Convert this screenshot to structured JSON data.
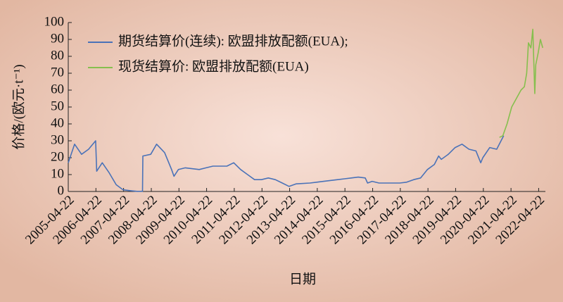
{
  "chart_data": {
    "type": "line",
    "xlabel": "日期",
    "ylabel": "价格/(欧元·t⁻¹)",
    "xlim": [
      "2005-04-22",
      "2022-07-20"
    ],
    "xticks": [
      "2005-04-22",
      "2006-04-22",
      "2007-04-22",
      "2008-04-22",
      "2009-04-22",
      "2010-04-22",
      "2011-04-22",
      "2012-04-22",
      "2013-04-22",
      "2014-04-22",
      "2015-04-22",
      "2016-04-22",
      "2017-04-22",
      "2018-04-22",
      "2019-04-22",
      "2020-04-22",
      "2021-04-22",
      "2022-04-22"
    ],
    "ylim": [
      0,
      100
    ],
    "yticks": [
      0,
      10,
      20,
      30,
      40,
      50,
      60,
      70,
      80,
      90,
      100
    ],
    "legend": "top-left",
    "series": [
      {
        "name": "期货结算价(连续): 欧盟排放配额(EUA);",
        "color": "#4a72b8",
        "x": [
          "2005-04-22",
          "2005-07-15",
          "2005-10-15",
          "2006-01-15",
          "2006-04-18",
          "2006-05-02",
          "2006-07-15",
          "2006-10-15",
          "2007-01-15",
          "2007-04-15",
          "2007-07-15",
          "2007-10-15",
          "2007-12-28",
          "2008-01-02",
          "2008-04-15",
          "2008-07-01",
          "2008-10-15",
          "2009-01-15",
          "2009-02-15",
          "2009-04-15",
          "2009-07-15",
          "2010-01-15",
          "2010-04-15",
          "2010-07-15",
          "2011-01-15",
          "2011-04-15",
          "2011-07-15",
          "2011-10-15",
          "2012-01-15",
          "2012-04-15",
          "2012-07-15",
          "2012-10-15",
          "2013-01-15",
          "2013-04-15",
          "2013-07-15",
          "2014-01-15",
          "2014-04-15",
          "2014-07-15",
          "2015-01-15",
          "2015-04-15",
          "2015-07-15",
          "2015-10-15",
          "2016-01-15",
          "2016-02-15",
          "2016-04-15",
          "2016-07-15",
          "2017-01-15",
          "2017-04-15",
          "2017-07-15",
          "2017-10-15",
          "2018-01-15",
          "2018-04-15",
          "2018-07-15",
          "2018-09-10",
          "2018-10-15",
          "2019-01-15",
          "2019-04-15",
          "2019-07-15",
          "2019-10-15",
          "2020-01-15",
          "2020-03-18",
          "2020-04-15",
          "2020-07-15",
          "2020-10-15",
          "2021-01-15"
        ],
        "values": [
          17,
          28,
          22,
          25,
          30,
          12,
          17,
          11,
          4,
          1,
          0.5,
          0.1,
          0.1,
          21,
          22,
          28,
          23,
          13,
          9,
          13,
          14,
          13,
          14,
          15,
          15,
          17,
          13,
          10,
          7,
          7,
          8,
          7,
          5,
          3,
          4.5,
          5,
          5.5,
          6,
          7,
          7.5,
          8,
          8.5,
          8,
          5,
          6,
          5,
          5,
          5,
          5.5,
          7,
          8,
          13,
          16,
          21,
          19,
          22,
          26,
          28,
          25,
          24,
          17,
          20,
          26,
          25,
          33
        ]
      },
      {
        "name": "现货结算价: 欧盟排放配额(EUA)",
        "color": "#86bf4e",
        "x": [
          "2020-11-20",
          "2021-01-04",
          "2021-03-01",
          "2021-05-01",
          "2021-07-01",
          "2021-09-01",
          "2021-10-15",
          "2021-11-15",
          "2021-12-08",
          "2022-01-10",
          "2022-02-04",
          "2022-03-02",
          "2022-03-15",
          "2022-04-15",
          "2022-05-15",
          "2022-06-15"
        ],
        "values": [
          32,
          33,
          40,
          50,
          55,
          60,
          62,
          70,
          88,
          85,
          96,
          58,
          75,
          82,
          90,
          85
        ]
      }
    ]
  }
}
